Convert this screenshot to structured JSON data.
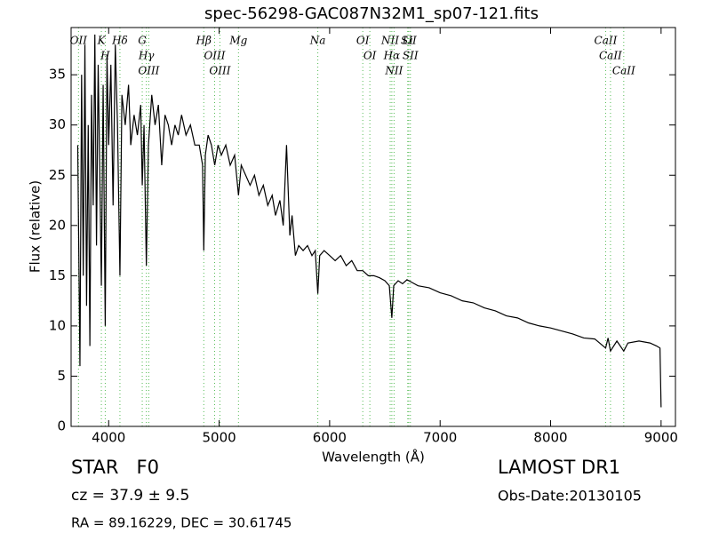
{
  "chart_data": {
    "type": "line",
    "title": "spec-56298-GAC087N32M1_sp07-121.fits",
    "x_label": "Wavelength (Å)",
    "y_label": "Flux (relative)",
    "xlim": [
      3660,
      9130
    ],
    "ylim": [
      0,
      39.7
    ],
    "xticks": [
      4000,
      5000,
      6000,
      7000,
      8000,
      9000
    ],
    "yticks": [
      0,
      5,
      10,
      15,
      20,
      25,
      30,
      35
    ],
    "series": [
      {
        "color": "#000000",
        "x": [
          3720,
          3740,
          3755,
          3770,
          3785,
          3800,
          3815,
          3830,
          3845,
          3860,
          3875,
          3890,
          3905,
          3920,
          3934,
          3950,
          3969,
          3985,
          4000,
          4020,
          4040,
          4060,
          4080,
          4102,
          4120,
          4150,
          4180,
          4200,
          4230,
          4260,
          4290,
          4304,
          4320,
          4341,
          4360,
          4390,
          4420,
          4450,
          4480,
          4510,
          4540,
          4570,
          4600,
          4630,
          4660,
          4700,
          4740,
          4780,
          4820,
          4850,
          4861,
          4875,
          4900,
          4930,
          4960,
          4990,
          5020,
          5060,
          5100,
          5140,
          5175,
          5200,
          5240,
          5280,
          5320,
          5360,
          5400,
          5440,
          5480,
          5510,
          5550,
          5580,
          5610,
          5640,
          5660,
          5690,
          5720,
          5760,
          5800,
          5840,
          5870,
          5893,
          5910,
          5950,
          6000,
          6050,
          6100,
          6150,
          6200,
          6250,
          6300,
          6350,
          6400,
          6450,
          6500,
          6540,
          6563,
          6580,
          6620,
          6660,
          6700,
          6750,
          6800,
          6900,
          7000,
          7100,
          7200,
          7300,
          7400,
          7500,
          7600,
          7700,
          7800,
          7900,
          8000,
          8100,
          8200,
          8300,
          8400,
          8498,
          8520,
          8542,
          8600,
          8662,
          8700,
          8800,
          8900,
          8960,
          8990,
          9000
        ],
        "values": [
          28,
          6,
          35,
          15,
          38,
          12,
          30,
          8,
          33,
          22,
          39,
          18,
          36,
          25,
          14,
          34,
          10,
          37,
          28,
          36,
          22,
          38,
          30,
          15,
          33,
          30,
          34,
          28,
          31,
          29,
          32,
          24,
          30,
          16,
          28,
          33,
          30,
          32,
          26,
          31,
          30,
          28,
          30,
          29,
          31,
          29,
          30,
          28,
          28,
          26,
          17.5,
          27,
          29,
          28,
          26,
          28,
          27,
          28,
          26,
          27,
          23,
          26,
          25,
          24,
          25,
          23,
          24,
          22,
          23,
          21,
          22.5,
          20,
          28,
          19,
          21,
          17,
          18,
          17.5,
          18,
          17,
          17.5,
          13.2,
          17,
          17.5,
          17,
          16.5,
          17,
          16,
          16.5,
          15.5,
          15.5,
          15,
          15,
          14.8,
          14.5,
          14,
          10.8,
          14,
          14.5,
          14.2,
          14.6,
          14.3,
          14,
          13.8,
          13.3,
          13,
          12.5,
          12.3,
          11.8,
          11.5,
          11,
          10.8,
          10.3,
          10,
          9.8,
          9.5,
          9.2,
          8.8,
          8.7,
          7.8,
          8.8,
          7.5,
          8.5,
          7.5,
          8.3,
          8.5,
          8.3,
          8.0,
          7.8,
          1.9
        ]
      }
    ],
    "line_color": "#55bb55",
    "spectral_lines": [
      {
        "label": "OII",
        "x": 3727
      },
      {
        "label": "K",
        "x": 3934
      },
      {
        "label": "H",
        "x": 3969
      },
      {
        "label": "Hδ",
        "x": 4102
      },
      {
        "label": "G",
        "x": 4304
      },
      {
        "label": "Hγ",
        "x": 4341
      },
      {
        "label": "OIII",
        "x": 4363
      },
      {
        "label": "Hβ",
        "x": 4861
      },
      {
        "label": "OIII",
        "x": 4959
      },
      {
        "label": "OIII",
        "x": 5007
      },
      {
        "label": "Mg",
        "x": 5175
      },
      {
        "label": "Na",
        "x": 5893
      },
      {
        "label": "OI",
        "x": 6300
      },
      {
        "label": "OI",
        "x": 6364
      },
      {
        "label": "NII",
        "x": 6548
      },
      {
        "label": "Hα",
        "x": 6563
      },
      {
        "label": "NII",
        "x": 6583
      },
      {
        "label": "Li",
        "x": 6707
      },
      {
        "label": "SII",
        "x": 6716
      },
      {
        "label": "SII",
        "x": 6731
      },
      {
        "label": "CaII",
        "x": 8498
      },
      {
        "label": "CaII",
        "x": 8542
      },
      {
        "label": "CaII",
        "x": 8662
      }
    ]
  },
  "footer": {
    "class": "STAR   F0",
    "cz": "cz = 37.9 ± 9.5",
    "coords": "RA = 89.16229, DEC = 30.61745",
    "survey": "LAMOST DR1",
    "obs_date": "Obs-Date:20130105"
  }
}
